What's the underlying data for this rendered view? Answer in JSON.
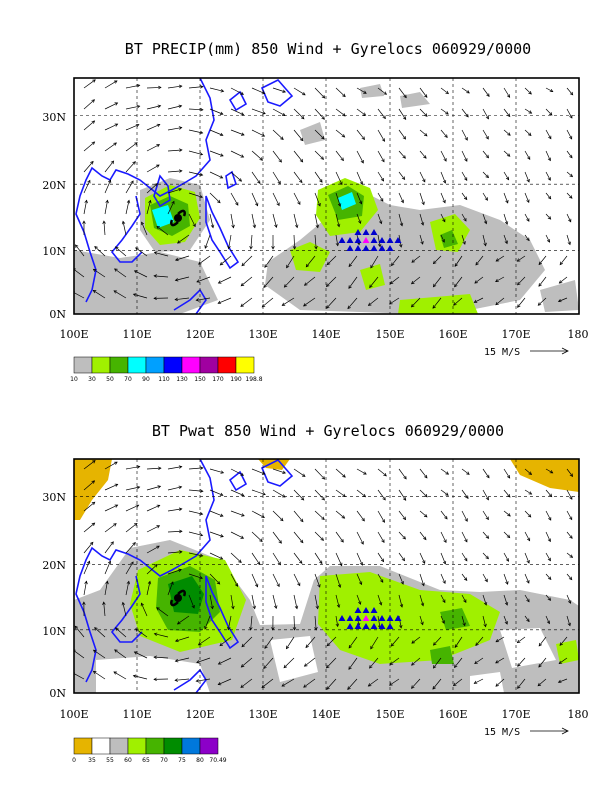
{
  "panels": [
    {
      "title": "BT PRECIP(mm) 850 Wind + Gyrelocs 060929/0000",
      "lon_labels": [
        "100E",
        "110E",
        "120E",
        "130E",
        "140E",
        "150E",
        "160E",
        "170E",
        "180"
      ],
      "lat_labels": [
        "30N",
        "20N",
        "10N",
        "0N"
      ],
      "vector_scale_label": "15 M/S",
      "legend_labels": [
        "10",
        "30",
        "50",
        "70",
        "90",
        "110",
        "130",
        "150",
        "170",
        "190",
        "198.8"
      ],
      "legend_colors": [
        "#bebebe",
        "#a0f000",
        "#46b400",
        "#00ffff",
        "#00a0ff",
        "#0000ff",
        "#ff00ff",
        "#a000a0",
        "#ff0000",
        "#ffff00"
      ]
    },
    {
      "title": "BT Pwat 850 Wind + Gyrelocs 060929/0000",
      "lon_labels": [
        "100E",
        "110E",
        "120E",
        "130E",
        "140E",
        "150E",
        "160E",
        "170E",
        "180"
      ],
      "lat_labels": [
        "30N",
        "20N",
        "10N",
        "0N"
      ],
      "vector_scale_label": "15 M/S",
      "legend_labels": [
        "0",
        "35",
        "55",
        "60",
        "65",
        "70",
        "75",
        "80",
        "70.49"
      ],
      "legend_colors": [
        "#e6b400",
        "#ffffff",
        "#bebebe",
        "#a0f000",
        "#46b400",
        "#008c00",
        "#0078dc",
        "#8c00c8"
      ]
    }
  ]
}
